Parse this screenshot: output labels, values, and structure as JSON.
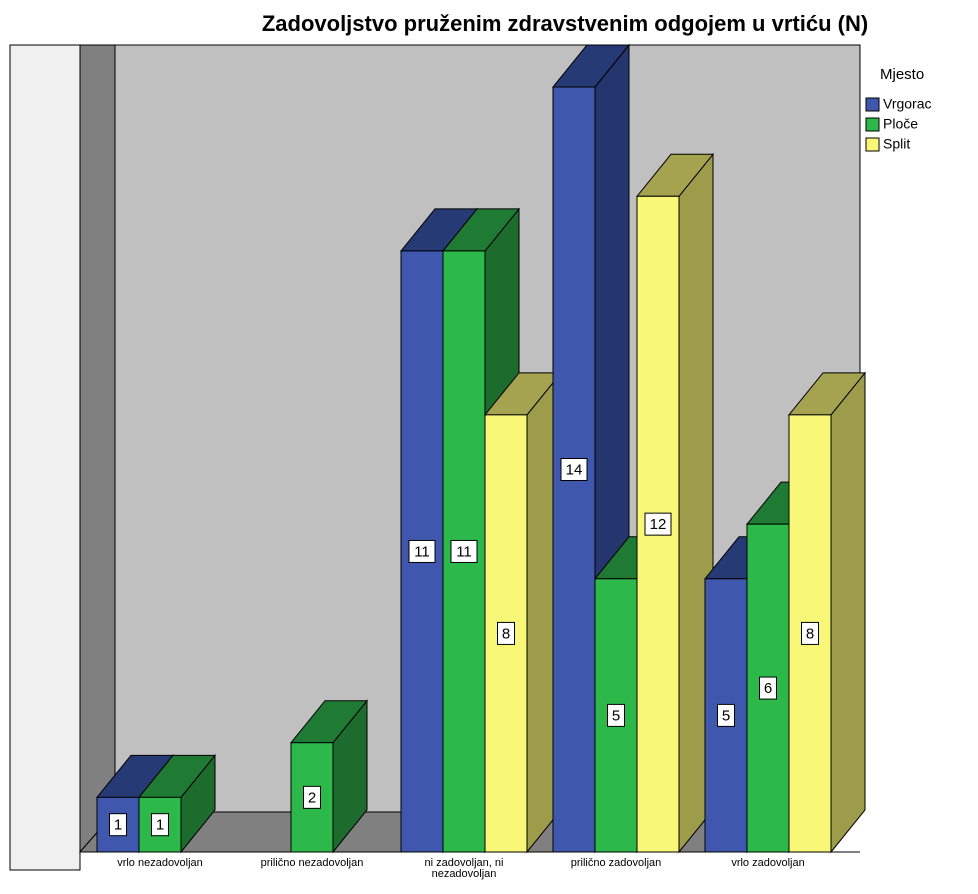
{
  "chart_data": {
    "type": "bar3d",
    "title": "Zadovoljstvo pruženim zdravstvenim odgojem u vrtiću (N)",
    "legend_title": "Mjesto",
    "legend_position": "right",
    "categories": [
      "vrlo nezadovoljan",
      "prilično nezadovoljan",
      "ni zadovoljan, ni nezadovoljan",
      "prilično zadovoljan",
      "vrlo zadovoljan"
    ],
    "series": [
      {
        "name": "Vrgorac",
        "color": "#3f58ad",
        "top_color": "#263a75",
        "side_color": "#25356d",
        "values": [
          1,
          null,
          11,
          14,
          5
        ]
      },
      {
        "name": "Ploče",
        "color": "#2db84a",
        "top_color": "#1f7a33",
        "side_color": "#1d6b2d",
        "values": [
          1,
          2,
          11,
          5,
          6
        ]
      },
      {
        "name": "Split",
        "color": "#f8f777",
        "top_color": "#a5a350",
        "side_color": "#9d9c4a",
        "values": [
          null,
          null,
          8,
          12,
          8
        ]
      }
    ]
  }
}
